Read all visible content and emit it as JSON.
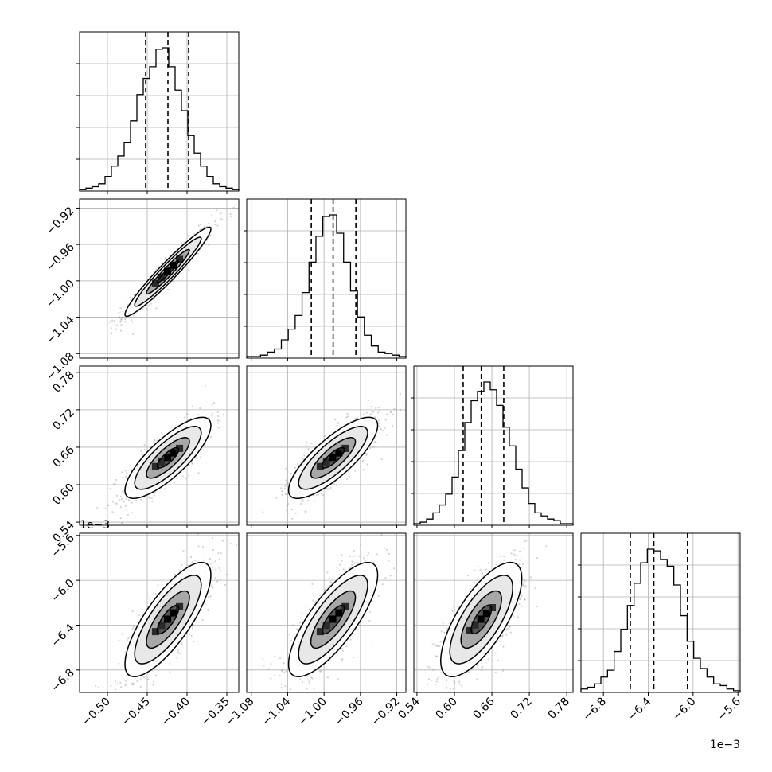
{
  "chart_data": {
    "type": "corner",
    "n_params": 4,
    "quantiles": [
      0.16,
      0.5,
      0.84
    ],
    "colors": {
      "hist": "#000000",
      "quantile_line": "#000000",
      "grid": "#b0b0b0",
      "points": "#808080",
      "contour": "#000000"
    },
    "params": [
      {
        "ticks": [
          -0.5,
          -0.45,
          -0.4,
          -0.35
        ],
        "tick_labels": [
          "−0.50",
          "−0.45",
          "−0.40",
          "−0.35"
        ],
        "range": [
          -0.535,
          -0.335
        ],
        "offset_label": ""
      },
      {
        "ticks": [
          -1.08,
          -1.04,
          -1.0,
          -0.96,
          -0.92
        ],
        "tick_labels": [
          "−1.08",
          "−1.04",
          "−1.00",
          "−0.96",
          "−0.92"
        ],
        "range": [
          -1.085,
          -0.91
        ],
        "offset_label": ""
      },
      {
        "ticks": [
          0.54,
          0.6,
          0.66,
          0.72,
          0.78
        ],
        "tick_labels": [
          "0.54",
          "0.60",
          "0.66",
          "0.72",
          "0.78"
        ],
        "range": [
          0.535,
          0.79
        ],
        "offset_label": ""
      },
      {
        "ticks": [
          -6.8,
          -6.4,
          -6.0,
          -5.6
        ],
        "tick_labels": [
          "−6.8",
          "−6.4",
          "−6.0",
          "−5.6"
        ],
        "range": [
          -7.0,
          -5.58
        ],
        "offset_label": "1e−3"
      }
    ],
    "marginals": [
      {
        "quantile_values": [
          -0.452,
          -0.424,
          -0.398
        ],
        "bin_edges_range": [
          -0.535,
          -0.335
        ],
        "counts": [
          1,
          2,
          3,
          5,
          10,
          17,
          24,
          33,
          48,
          66,
          77,
          85,
          97,
          98,
          85,
          69,
          55,
          38,
          26,
          17,
          10,
          5,
          3,
          2,
          1
        ]
      },
      {
        "quantile_values": [
          -1.014,
          -0.99,
          -0.965
        ],
        "bin_edges_range": [
          -1.085,
          -0.91
        ],
        "counts": [
          1,
          1,
          2,
          4,
          6,
          12,
          19,
          28,
          43,
          63,
          80,
          93,
          94,
          82,
          63,
          44,
          27,
          15,
          8,
          4,
          3,
          2,
          1
        ]
      },
      {
        "quantile_values": [
          0.614,
          0.643,
          0.679
        ],
        "bin_edges_range": [
          0.535,
          0.79
        ],
        "counts": [
          1,
          2,
          4,
          8,
          13,
          20,
          31,
          48,
          66,
          80,
          86,
          92,
          87,
          77,
          63,
          51,
          36,
          24,
          14,
          8,
          6,
          4,
          3,
          1,
          1
        ]
      },
      {
        "quantile_values": [
          -6.56,
          -6.35,
          -6.05
        ],
        "bin_edges_range": [
          -7.0,
          -5.58
        ],
        "counts": [
          2,
          3,
          5,
          9,
          13,
          24,
          37,
          51,
          64,
          76,
          84,
          83,
          78,
          74,
          63,
          45,
          30,
          20,
          14,
          9,
          5,
          4,
          2,
          1
        ]
      }
    ],
    "joints": [
      {
        "x_param": 0,
        "y_param": 1,
        "correlation": 0.96
      },
      {
        "x_param": 0,
        "y_param": 2,
        "correlation": 0.8
      },
      {
        "x_param": 1,
        "y_param": 2,
        "correlation": 0.8
      },
      {
        "x_param": 0,
        "y_param": 3,
        "correlation": 0.78
      },
      {
        "x_param": 1,
        "y_param": 3,
        "correlation": 0.78
      },
      {
        "x_param": 2,
        "y_param": 3,
        "correlation": 0.72
      }
    ]
  }
}
